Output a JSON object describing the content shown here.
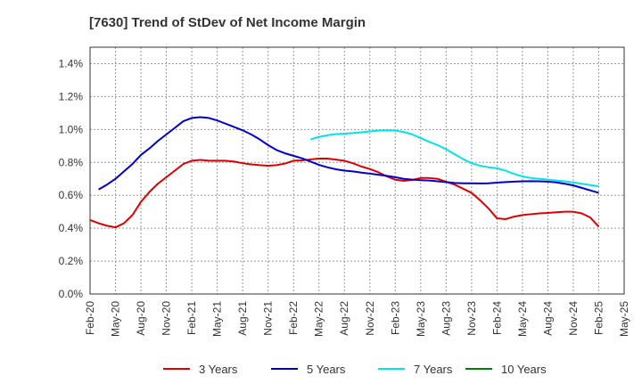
{
  "chart_data": {
    "type": "line",
    "title": "[7630]  Trend of StDev of Net Income Margin",
    "xlabel": "",
    "ylabel": "",
    "x_ticks": [
      "Feb-20",
      "May-20",
      "Aug-20",
      "Nov-20",
      "Feb-21",
      "May-21",
      "Aug-21",
      "Nov-21",
      "Feb-22",
      "May-22",
      "Aug-22",
      "Nov-22",
      "Feb-23",
      "May-23",
      "Aug-23",
      "Nov-23",
      "Feb-24",
      "May-24",
      "Aug-24",
      "Nov-24",
      "Feb-25",
      "May-25"
    ],
    "y_ticks": [
      "0.0%",
      "0.2%",
      "0.4%",
      "0.6%",
      "0.8%",
      "1.0%",
      "1.2%",
      "1.4%"
    ],
    "ylim": [
      0,
      1.5
    ],
    "y_unit": "%",
    "grid": true,
    "legend_position": "bottom",
    "series": [
      {
        "name": "3 Years",
        "color": "#dd0000",
        "points": [
          [
            "Feb-20",
            0.45
          ],
          [
            "Mar-20",
            0.43
          ],
          [
            "Apr-20",
            0.415
          ],
          [
            "May-20",
            0.405
          ],
          [
            "Jun-20",
            0.43
          ],
          [
            "Jul-20",
            0.48
          ],
          [
            "Aug-20",
            0.56
          ],
          [
            "Sep-20",
            0.62
          ],
          [
            "Oct-20",
            0.67
          ],
          [
            "Nov-20",
            0.71
          ],
          [
            "Dec-20",
            0.75
          ],
          [
            "Jan-21",
            0.79
          ],
          [
            "Feb-21",
            0.81
          ],
          [
            "Mar-21",
            0.815
          ],
          [
            "Apr-21",
            0.81
          ],
          [
            "May-21",
            0.81
          ],
          [
            "Jun-21",
            0.81
          ],
          [
            "Jul-21",
            0.805
          ],
          [
            "Aug-21",
            0.795
          ],
          [
            "Sep-21",
            0.788
          ],
          [
            "Oct-21",
            0.783
          ],
          [
            "Nov-21",
            0.78
          ],
          [
            "Dec-21",
            0.783
          ],
          [
            "Jan-22",
            0.793
          ],
          [
            "Feb-22",
            0.81
          ],
          [
            "Mar-22",
            0.812
          ],
          [
            "Apr-22",
            0.818
          ],
          [
            "May-22",
            0.823
          ],
          [
            "Jun-22",
            0.823
          ],
          [
            "Jul-22",
            0.817
          ],
          [
            "Aug-22",
            0.81
          ],
          [
            "Sep-22",
            0.795
          ],
          [
            "Oct-22",
            0.775
          ],
          [
            "Nov-22",
            0.76
          ],
          [
            "Dec-22",
            0.74
          ],
          [
            "Jan-23",
            0.715
          ],
          [
            "Feb-23",
            0.695
          ],
          [
            "Mar-23",
            0.688
          ],
          [
            "Apr-23",
            0.693
          ],
          [
            "May-23",
            0.705
          ],
          [
            "Jun-23",
            0.705
          ],
          [
            "Jul-23",
            0.7
          ],
          [
            "Aug-23",
            0.682
          ],
          [
            "Sep-23",
            0.665
          ],
          [
            "Oct-23",
            0.64
          ],
          [
            "Nov-23",
            0.615
          ],
          [
            "Dec-23",
            0.57
          ],
          [
            "Jan-24",
            0.52
          ],
          [
            "Feb-24",
            0.46
          ],
          [
            "Mar-24",
            0.455
          ],
          [
            "Apr-24",
            0.47
          ],
          [
            "May-24",
            0.48
          ],
          [
            "Jun-24",
            0.485
          ],
          [
            "Jul-24",
            0.49
          ],
          [
            "Aug-24",
            0.493
          ],
          [
            "Sep-24",
            0.497
          ],
          [
            "Oct-24",
            0.5
          ],
          [
            "Nov-24",
            0.5
          ],
          [
            "Dec-24",
            0.49
          ],
          [
            "Jan-25",
            0.465
          ],
          [
            "Feb-25",
            0.41
          ]
        ]
      },
      {
        "name": "5 Years",
        "color": "#0000cc",
        "points": [
          [
            "Feb-20",
            null
          ],
          [
            "Mar-20",
            0.635
          ],
          [
            "Apr-20",
            0.665
          ],
          [
            "May-20",
            0.7
          ],
          [
            "Jun-20",
            0.745
          ],
          [
            "Jul-20",
            0.79
          ],
          [
            "Aug-20",
            0.845
          ],
          [
            "Sep-20",
            0.885
          ],
          [
            "Oct-20",
            0.93
          ],
          [
            "Nov-20",
            0.97
          ],
          [
            "Dec-20",
            1.01
          ],
          [
            "Jan-21",
            1.05
          ],
          [
            "Feb-21",
            1.07
          ],
          [
            "Mar-21",
            1.075
          ],
          [
            "Apr-21",
            1.07
          ],
          [
            "May-21",
            1.055
          ],
          [
            "Jun-21",
            1.035
          ],
          [
            "Jul-21",
            1.015
          ],
          [
            "Aug-21",
            0.995
          ],
          [
            "Sep-21",
            0.97
          ],
          [
            "Oct-21",
            0.94
          ],
          [
            "Nov-21",
            0.905
          ],
          [
            "Dec-21",
            0.875
          ],
          [
            "Jan-22",
            0.855
          ],
          [
            "Feb-22",
            0.84
          ],
          [
            "Mar-22",
            0.825
          ],
          [
            "Apr-22",
            0.805
          ],
          [
            "May-22",
            0.785
          ],
          [
            "Jun-22",
            0.77
          ],
          [
            "Jul-22",
            0.758
          ],
          [
            "Aug-22",
            0.75
          ],
          [
            "Sep-22",
            0.745
          ],
          [
            "Oct-22",
            0.738
          ],
          [
            "Nov-22",
            0.732
          ],
          [
            "Dec-22",
            0.725
          ],
          [
            "Jan-23",
            0.718
          ],
          [
            "Feb-23",
            0.71
          ],
          [
            "Mar-23",
            0.7
          ],
          [
            "Apr-23",
            0.695
          ],
          [
            "May-23",
            0.692
          ],
          [
            "Jun-23",
            0.69
          ],
          [
            "Jul-23",
            0.685
          ],
          [
            "Aug-23",
            0.68
          ],
          [
            "Sep-23",
            0.675
          ],
          [
            "Oct-23",
            0.673
          ],
          [
            "Nov-23",
            0.673
          ],
          [
            "Dec-23",
            0.672
          ],
          [
            "Jan-24",
            0.673
          ],
          [
            "Feb-24",
            0.677
          ],
          [
            "Mar-24",
            0.68
          ],
          [
            "Apr-24",
            0.683
          ],
          [
            "May-24",
            0.685
          ],
          [
            "Jun-24",
            0.686
          ],
          [
            "Jul-24",
            0.685
          ],
          [
            "Aug-24",
            0.683
          ],
          [
            "Sep-24",
            0.678
          ],
          [
            "Oct-24",
            0.67
          ],
          [
            "Nov-24",
            0.66
          ],
          [
            "Dec-24",
            0.645
          ],
          [
            "Jan-25",
            0.63
          ],
          [
            "Feb-25",
            0.615
          ]
        ]
      },
      {
        "name": "7 Years",
        "color": "#00e5e5",
        "points": [
          [
            "Apr-22",
            0.94
          ],
          [
            "May-22",
            0.955
          ],
          [
            "Jun-22",
            0.965
          ],
          [
            "Jul-22",
            0.972
          ],
          [
            "Aug-22",
            0.975
          ],
          [
            "Sep-22",
            0.978
          ],
          [
            "Oct-22",
            0.983
          ],
          [
            "Nov-22",
            0.988
          ],
          [
            "Dec-22",
            0.993
          ],
          [
            "Jan-23",
            0.995
          ],
          [
            "Feb-23",
            0.993
          ],
          [
            "Mar-23",
            0.985
          ],
          [
            "Apr-23",
            0.97
          ],
          [
            "May-23",
            0.948
          ],
          [
            "Jun-23",
            0.925
          ],
          [
            "Jul-23",
            0.905
          ],
          [
            "Aug-23",
            0.88
          ],
          [
            "Sep-23",
            0.85
          ],
          [
            "Oct-23",
            0.82
          ],
          [
            "Nov-23",
            0.795
          ],
          [
            "Dec-23",
            0.78
          ],
          [
            "Jan-24",
            0.77
          ],
          [
            "Feb-24",
            0.765
          ],
          [
            "Mar-24",
            0.75
          ],
          [
            "Apr-24",
            0.73
          ],
          [
            "May-24",
            0.715
          ],
          [
            "Jun-24",
            0.705
          ],
          [
            "Jul-24",
            0.7
          ],
          [
            "Aug-24",
            0.695
          ],
          [
            "Sep-24",
            0.69
          ],
          [
            "Oct-24",
            0.685
          ],
          [
            "Nov-24",
            0.678
          ],
          [
            "Dec-24",
            0.67
          ],
          [
            "Jan-25",
            0.662
          ],
          [
            "Feb-25",
            0.655
          ]
        ]
      },
      {
        "name": "10 Years",
        "color": "#008000",
        "points": []
      }
    ]
  }
}
